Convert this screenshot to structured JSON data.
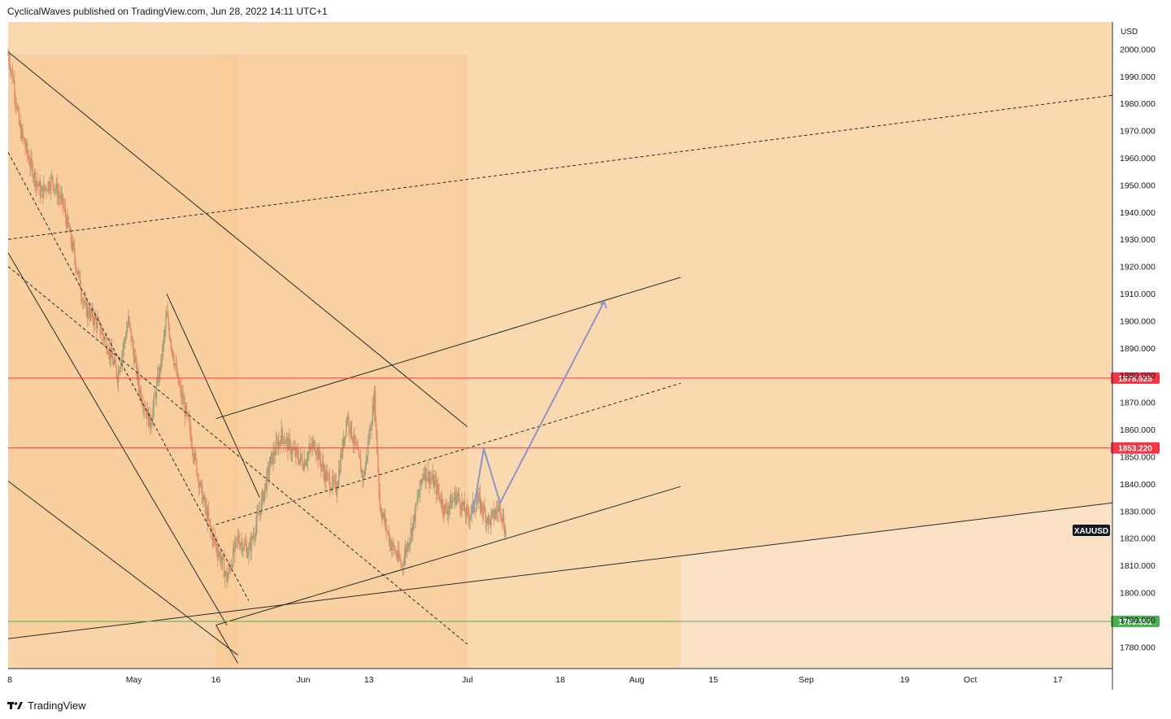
{
  "header": {
    "publisher_line": "CyclicalWaves published on TradingView.com, Jun 28, 2022 14:11 UTC+1"
  },
  "footer": {
    "brand": "TradingView",
    "logo_icon": "tradingview-logo-icon"
  },
  "chart_data": {
    "type": "candlestick",
    "symbol": "XAUUSD",
    "currency": "USD",
    "ylim": [
      1772,
      2010
    ],
    "xlim": [
      "2022-04-08",
      "2022-10-27"
    ],
    "y_ticks": [
      "2000.000",
      "1990.000",
      "1980.000",
      "1970.000",
      "1960.000",
      "1950.000",
      "1940.000",
      "1930.000",
      "1920.000",
      "1910.000",
      "1900.000",
      "1890.000",
      "1880.000",
      "1870.000",
      "1860.000",
      "1850.000",
      "1840.000",
      "1830.000",
      "1820.000",
      "1810.000",
      "1800.000",
      "1790.000",
      "1780.000"
    ],
    "x_ticks": [
      {
        "label": "8",
        "date": "2022-04-08"
      },
      {
        "label": "May",
        "date": "2022-05-01"
      },
      {
        "label": "16",
        "date": "2022-05-16"
      },
      {
        "label": "Jun",
        "date": "2022-06-01"
      },
      {
        "label": "13",
        "date": "2022-06-13"
      },
      {
        "label": "Jul",
        "date": "2022-07-01"
      },
      {
        "label": "18",
        "date": "2022-07-18"
      },
      {
        "label": "Aug",
        "date": "2022-08-01"
      },
      {
        "label": "15",
        "date": "2022-08-15"
      },
      {
        "label": "Sep",
        "date": "2022-09-01"
      },
      {
        "label": "19",
        "date": "2022-09-19"
      },
      {
        "label": "Oct",
        "date": "2022-10-01"
      },
      {
        "label": "17",
        "date": "2022-10-17"
      }
    ],
    "horizontal_levels": [
      {
        "value": 1878.925,
        "label": "1878.925",
        "color": "#f23645"
      },
      {
        "value": 1853.22,
        "label": "1853.220",
        "color": "#f23645"
      },
      {
        "value": 1789.351,
        "label": "1789.351",
        "color": "#4caf50"
      }
    ],
    "price_path": [
      {
        "t": "2022-04-08",
        "p": 1998
      },
      {
        "t": "2022-04-09",
        "p": 1988
      },
      {
        "t": "2022-04-10",
        "p": 1972
      },
      {
        "t": "2022-04-12",
        "p": 1958
      },
      {
        "t": "2022-04-14",
        "p": 1947
      },
      {
        "t": "2022-04-16",
        "p": 1952
      },
      {
        "t": "2022-04-18",
        "p": 1943
      },
      {
        "t": "2022-04-20",
        "p": 1925
      },
      {
        "t": "2022-04-22",
        "p": 1905
      },
      {
        "t": "2022-04-24",
        "p": 1900
      },
      {
        "t": "2022-04-26",
        "p": 1892
      },
      {
        "t": "2022-04-28",
        "p": 1880
      },
      {
        "t": "2022-04-30",
        "p": 1900
      },
      {
        "t": "2022-05-02",
        "p": 1875
      },
      {
        "t": "2022-05-04",
        "p": 1862
      },
      {
        "t": "2022-05-06",
        "p": 1885
      },
      {
        "t": "2022-05-07",
        "p": 1902
      },
      {
        "t": "2022-05-09",
        "p": 1878
      },
      {
        "t": "2022-05-11",
        "p": 1862
      },
      {
        "t": "2022-05-13",
        "p": 1840
      },
      {
        "t": "2022-05-15",
        "p": 1823
      },
      {
        "t": "2022-05-17",
        "p": 1812
      },
      {
        "t": "2022-05-18",
        "p": 1805
      },
      {
        "t": "2022-05-20",
        "p": 1820
      },
      {
        "t": "2022-05-22",
        "p": 1815
      },
      {
        "t": "2022-05-24",
        "p": 1830
      },
      {
        "t": "2022-05-26",
        "p": 1848
      },
      {
        "t": "2022-05-28",
        "p": 1858
      },
      {
        "t": "2022-05-30",
        "p": 1852
      },
      {
        "t": "2022-06-01",
        "p": 1848
      },
      {
        "t": "2022-06-03",
        "p": 1855
      },
      {
        "t": "2022-06-05",
        "p": 1843
      },
      {
        "t": "2022-06-07",
        "p": 1838
      },
      {
        "t": "2022-06-09",
        "p": 1865
      },
      {
        "t": "2022-06-11",
        "p": 1850
      },
      {
        "t": "2022-06-12",
        "p": 1842
      },
      {
        "t": "2022-06-14",
        "p": 1872
      },
      {
        "t": "2022-06-15",
        "p": 1832
      },
      {
        "t": "2022-06-17",
        "p": 1818
      },
      {
        "t": "2022-06-19",
        "p": 1810
      },
      {
        "t": "2022-06-21",
        "p": 1825
      },
      {
        "t": "2022-06-23",
        "p": 1845
      },
      {
        "t": "2022-06-25",
        "p": 1840
      },
      {
        "t": "2022-06-27",
        "p": 1830
      },
      {
        "t": "2022-06-29",
        "p": 1836
      },
      {
        "t": "2022-07-01",
        "p": 1828
      },
      {
        "t": "2022-07-03",
        "p": 1834
      },
      {
        "t": "2022-07-05",
        "p": 1826
      },
      {
        "t": "2022-07-07",
        "p": 1832
      },
      {
        "t": "2022-07-08",
        "p": 1822
      }
    ],
    "projection_path": [
      {
        "t": "2022-07-02",
        "p": 1829
      },
      {
        "t": "2022-07-04",
        "p": 1853
      },
      {
        "t": "2022-07-07",
        "p": 1833
      },
      {
        "t": "2022-07-26",
        "p": 1907
      }
    ],
    "trendlines": [
      {
        "style": "dashed",
        "from": {
          "t": "2022-04-08",
          "p": 1930
        },
        "to": {
          "t": "2022-10-27",
          "p": 1983
        }
      },
      {
        "style": "solid",
        "from": {
          "t": "2022-04-08",
          "p": 1783
        },
        "to": {
          "t": "2022-10-27",
          "p": 1833
        }
      },
      {
        "style": "solid",
        "from": {
          "t": "2022-04-08",
          "p": 1999
        },
        "to": {
          "t": "2022-07-01",
          "p": 1861
        }
      },
      {
        "style": "solid",
        "from": {
          "t": "2022-04-08",
          "p": 1925
        },
        "to": {
          "t": "2022-05-18",
          "p": 1788
        }
      },
      {
        "style": "solid",
        "from": {
          "t": "2022-05-07",
          "p": 1910
        },
        "to": {
          "t": "2022-05-24",
          "p": 1835
        }
      },
      {
        "style": "solid",
        "from": {
          "t": "2022-04-08",
          "p": 1841
        },
        "to": {
          "t": "2022-05-20",
          "p": 1777
        }
      },
      {
        "style": "solid",
        "from": {
          "t": "2022-05-16",
          "p": 1788
        },
        "to": {
          "t": "2022-05-20",
          "p": 1774
        }
      },
      {
        "style": "dashed",
        "from": {
          "t": "2022-04-08",
          "p": 1962
        },
        "to": {
          "t": "2022-05-22",
          "p": 1797
        }
      },
      {
        "style": "dashed",
        "from": {
          "t": "2022-04-08",
          "p": 1920
        },
        "to": {
          "t": "2022-07-01",
          "p": 1781
        }
      },
      {
        "style": "solid",
        "from": {
          "t": "2022-05-16",
          "p": 1864
        },
        "to": {
          "t": "2022-08-09",
          "p": 1916
        }
      },
      {
        "style": "dashed",
        "from": {
          "t": "2022-05-16",
          "p": 1825
        },
        "to": {
          "t": "2022-08-09",
          "p": 1877
        }
      },
      {
        "style": "solid",
        "from": {
          "t": "2022-05-16",
          "p": 1788
        },
        "to": {
          "t": "2022-08-09",
          "p": 1839
        }
      }
    ],
    "colors": {
      "background_outer": "#fbe1c5",
      "background_zone": "#fad8b0",
      "background_inner": "#f8ca96",
      "candle_up": "#9aa07a",
      "candle_down": "#e58a66",
      "projection": "#8f96c7",
      "trendline": "#2a2a2a"
    }
  }
}
